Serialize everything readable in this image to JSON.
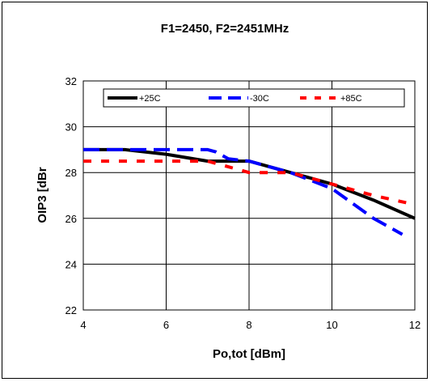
{
  "chart_data": {
    "type": "line",
    "title": "F1=2450, F2=2451MHz",
    "xlabel": "Po,tot [dBm]",
    "ylabel": "OIP3 [dBr",
    "xlim": [
      4,
      12
    ],
    "ylim": [
      22,
      32
    ],
    "xticks": [
      4,
      6,
      8,
      10,
      12
    ],
    "yticks": [
      22,
      24,
      26,
      28,
      30,
      32
    ],
    "grid": true,
    "legend_position": "top",
    "series": [
      {
        "name": "+25C",
        "color": "#000000",
        "style": "solid",
        "x": [
          4,
          5,
          6,
          7,
          8,
          9,
          10,
          11,
          12
        ],
        "y": [
          29.0,
          29.0,
          28.8,
          28.5,
          28.5,
          28.0,
          27.5,
          26.8,
          26.0
        ]
      },
      {
        "name": "-30C",
        "color": "#0000ff",
        "style": "dashed",
        "x": [
          4,
          5,
          6,
          7,
          7.2,
          7.5,
          8,
          9,
          10,
          11,
          11.7
        ],
        "y": [
          29.0,
          29.0,
          29.0,
          29.0,
          28.9,
          28.6,
          28.5,
          28.0,
          27.3,
          26.0,
          25.3
        ]
      },
      {
        "name": "+85C",
        "color": "#ff0000",
        "style": "dashed",
        "x": [
          4,
          5,
          6,
          7,
          7.6,
          8,
          9,
          10,
          11,
          12
        ],
        "y": [
          28.5,
          28.5,
          28.5,
          28.5,
          28.2,
          28.0,
          28.0,
          27.5,
          27.0,
          26.6
        ]
      }
    ]
  }
}
